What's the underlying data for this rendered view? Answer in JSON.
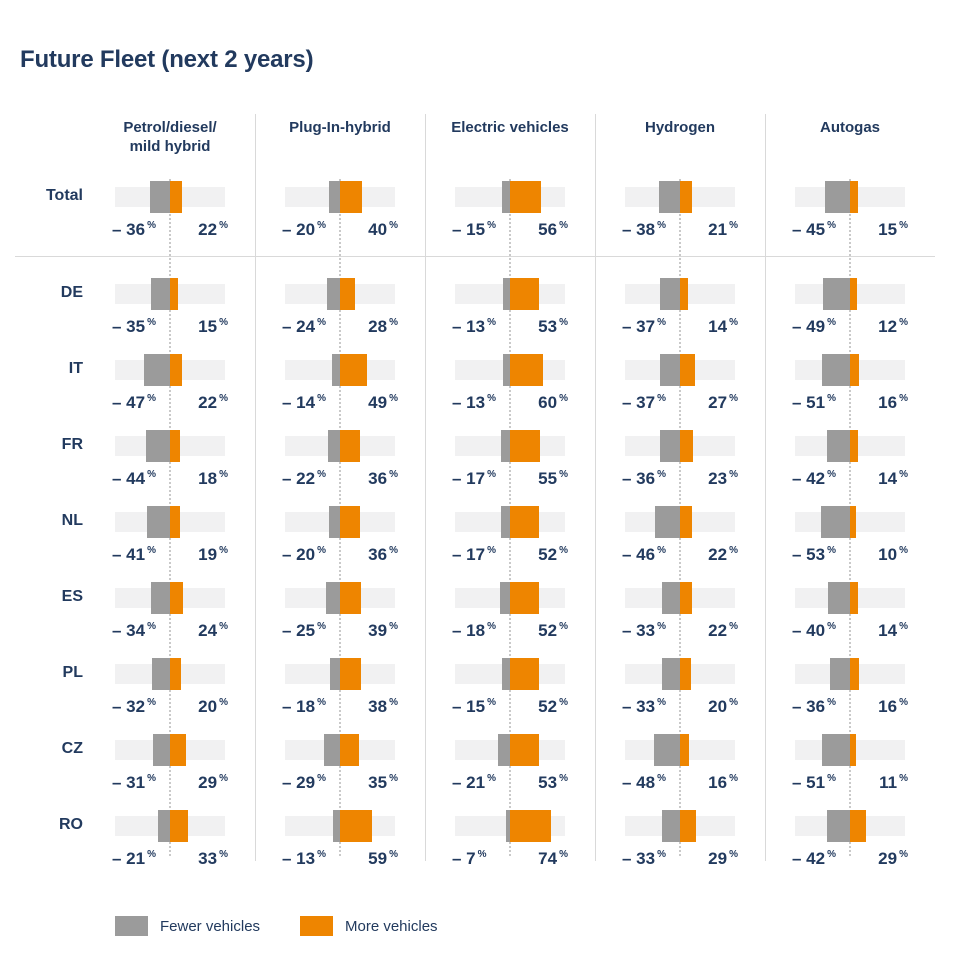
{
  "chart_data": {
    "type": "bar",
    "variant": "diverging horizontal bars, small-multiples grid (rows = markets, columns = drivetrains)",
    "title": "Future Fleet (next 2 years)",
    "unit": "%",
    "xlim": [
      -100,
      100
    ],
    "grid": "dotted vertical zero-baseline per column, light column separators, separator line under Total row",
    "legend_position": "bottom-left",
    "text_color": "#223a5e",
    "track_color": "#f1f1f2",
    "columns": [
      "Petrol/diesel/\nmild hybrid",
      "Plug-In-hybrid",
      "Electric vehicles",
      "Hydrogen",
      "Autogas"
    ],
    "categories": [
      "Total",
      "DE",
      "IT",
      "FR",
      "NL",
      "ES",
      "PL",
      "CZ",
      "RO"
    ],
    "series": [
      {
        "name": "Fewer vehicles",
        "color": "#9b9b9b",
        "values": [
          [
            -36,
            -20,
            -15,
            -38,
            -45
          ],
          [
            -35,
            -24,
            -13,
            -37,
            -49
          ],
          [
            -47,
            -14,
            -13,
            -37,
            -51
          ],
          [
            -44,
            -22,
            -17,
            -36,
            -42
          ],
          [
            -41,
            -20,
            -17,
            -46,
            -53
          ],
          [
            -34,
            -25,
            -18,
            -33,
            -40
          ],
          [
            -32,
            -18,
            -15,
            -33,
            -36
          ],
          [
            -31,
            -29,
            -21,
            -48,
            -51
          ],
          [
            -21,
            -13,
            -7,
            -33,
            -42
          ]
        ]
      },
      {
        "name": "More vehicles",
        "color": "#ee8500",
        "values": [
          [
            22,
            40,
            56,
            21,
            15
          ],
          [
            15,
            28,
            53,
            14,
            12
          ],
          [
            22,
            49,
            60,
            27,
            16
          ],
          [
            18,
            36,
            55,
            23,
            14
          ],
          [
            19,
            36,
            52,
            22,
            10
          ],
          [
            24,
            39,
            52,
            22,
            14
          ],
          [
            20,
            38,
            52,
            20,
            16
          ],
          [
            29,
            35,
            53,
            16,
            11
          ],
          [
            33,
            59,
            74,
            29,
            29
          ]
        ]
      }
    ]
  }
}
